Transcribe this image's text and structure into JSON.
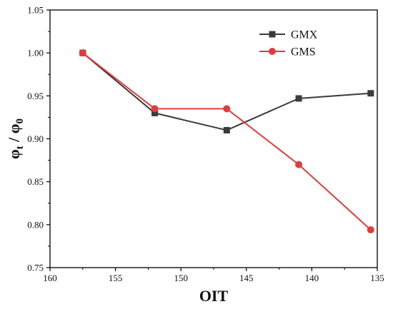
{
  "chart_data": {
    "type": "line",
    "title": "",
    "xlabel": "OIT",
    "ylabel": {
      "base1": "φ",
      "sub1": "t",
      "sep": " / ",
      "base2": "φ",
      "sub2": "0"
    },
    "xlim": [
      160,
      135
    ],
    "ylim": [
      0.75,
      1.05
    ],
    "x_reversed": true,
    "x_ticks": [
      160,
      155,
      150,
      145,
      140,
      135
    ],
    "x_tick_labels": [
      "160",
      "155",
      "150",
      "145",
      "140",
      "135"
    ],
    "y_ticks": [
      0.75,
      0.8,
      0.85,
      0.9,
      0.95,
      1.0,
      1.05
    ],
    "y_tick_labels": [
      "0.75",
      "0.80",
      "0.85",
      "0.90",
      "0.95",
      "1.00",
      "1.05"
    ],
    "grid": false,
    "legend_position": "top-right",
    "series": [
      {
        "name": "GMX",
        "color": "#3b3b3b",
        "marker": "square",
        "x": [
          157.5,
          152,
          146.5,
          141,
          135.5
        ],
        "y": [
          1.0,
          0.93,
          0.91,
          0.947,
          0.953
        ]
      },
      {
        "name": "GMS",
        "color": "#e23b3b",
        "marker": "circle",
        "x": [
          157.5,
          152,
          146.5,
          141,
          135.5
        ],
        "y": [
          1.0,
          0.935,
          0.935,
          0.87,
          0.794
        ]
      }
    ]
  }
}
